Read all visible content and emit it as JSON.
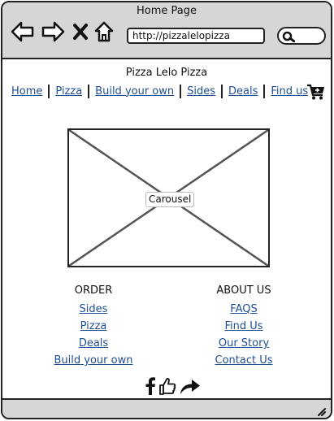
{
  "window": {
    "title": "Home Page"
  },
  "browser": {
    "back_icon": "back-arrow-icon",
    "forward_icon": "forward-arrow-icon",
    "stop_icon": "stop-x-icon",
    "home_icon": "home-icon",
    "url": "http://pizzalelopizza",
    "search_icon": "search-icon"
  },
  "site": {
    "title": "Pizza Lelo Pizza",
    "nav": [
      "Home",
      "Pizza",
      "Build your own",
      "Sides",
      "Deals",
      "Find us"
    ],
    "cart_icon": "shopping-cart-add-icon"
  },
  "carousel": {
    "label": "Carousel"
  },
  "footer": {
    "order": {
      "heading": "ORDER",
      "links": [
        "Sides",
        "Pizza",
        "Deals",
        "Build your own"
      ]
    },
    "about": {
      "heading": "ABOUT US",
      "links": [
        "FAQS",
        "Find Us",
        "Our Story",
        "Contact Us"
      ]
    }
  },
  "social": {
    "icons": [
      "facebook-icon",
      "thumbs-up-like-icon",
      "share-arrow-icon"
    ]
  },
  "colors": {
    "chrome": "#d6d6d6",
    "link": "#1f4e94",
    "border": "#222222"
  }
}
